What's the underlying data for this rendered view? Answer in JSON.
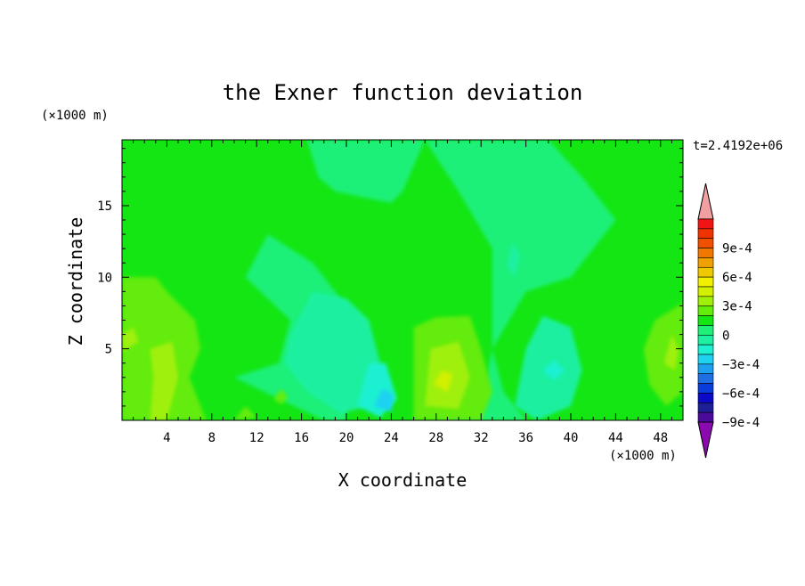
{
  "chart_data": {
    "type": "heatmap",
    "title": "the Exner function deviation",
    "xlabel": "X coordinate",
    "ylabel": "Z coordinate",
    "x_unit": "(×1000 m)",
    "z_unit": "(×1000 m)",
    "time_label": "t=2.4192e+06",
    "xlim": [
      0,
      50
    ],
    "ylim": [
      0,
      19.6
    ],
    "x_ticks": [
      4,
      8,
      12,
      16,
      20,
      24,
      28,
      32,
      36,
      40,
      44,
      48
    ],
    "y_ticks": [
      5,
      10,
      15
    ],
    "colorbar": {
      "levels": [
        -0.0011,
        -0.001,
        -0.0009,
        -0.0008,
        -0.0007,
        -0.0006,
        -0.0005,
        -0.0004,
        -0.0003,
        -0.0002,
        -0.0001,
        0,
        0.0001,
        0.0002,
        0.0003,
        0.0004,
        0.0005,
        0.0006,
        0.0007,
        0.0008,
        0.0009,
        0.001,
        0.0011
      ],
      "labels": [
        "9e-4",
        "6e-4",
        "3e-4",
        "0",
        "−3e-4",
        "−6e-4",
        "−9e-4"
      ],
      "colors": [
        "#8a0ab0",
        "#4a0a9a",
        "#1e1e96",
        "#0a0ac8",
        "#0a3cdc",
        "#1e6ee6",
        "#1ea0f0",
        "#1ed2f0",
        "#1ef0d2",
        "#1ef0a0",
        "#1ef078",
        "#14e614",
        "#64ec0a",
        "#a0f00a",
        "#d2f000",
        "#f0f000",
        "#f0c800",
        "#f0a000",
        "#f07800",
        "#f05000",
        "#f03200",
        "#f01414",
        "#f0a0a0"
      ]
    },
    "regions": [
      {
        "level": -0.0001,
        "points": [
          [
            20,
            0
          ],
          [
            20,
            8
          ],
          [
            17,
            11
          ],
          [
            13,
            13
          ],
          [
            11,
            10
          ],
          [
            15,
            7
          ],
          [
            14,
            4
          ],
          [
            10,
            3
          ],
          [
            14,
            1.5
          ],
          [
            18,
            0
          ]
        ]
      },
      {
        "level": -0.0001,
        "points": [
          [
            28,
            0
          ],
          [
            32,
            1
          ],
          [
            33,
            5
          ],
          [
            33,
            12
          ],
          [
            30,
            16
          ],
          [
            27,
            19.6
          ],
          [
            38,
            19.6
          ],
          [
            41,
            17
          ],
          [
            44,
            14
          ],
          [
            40,
            10
          ],
          [
            36,
            9
          ],
          [
            33,
            5
          ],
          [
            34,
            2
          ],
          [
            36,
            0
          ]
        ]
      },
      {
        "level": -0.0001,
        "points": [
          [
            16.5,
            19.6
          ],
          [
            17.5,
            17
          ],
          [
            19,
            16
          ],
          [
            22,
            15.5
          ],
          [
            24,
            15.2
          ],
          [
            25,
            16
          ],
          [
            27,
            19.6
          ]
        ]
      },
      {
        "level": -0.0002,
        "points": [
          [
            15,
            6
          ],
          [
            17,
            9
          ],
          [
            20,
            8.5
          ],
          [
            22,
            7
          ],
          [
            23,
            4
          ],
          [
            22,
            1
          ],
          [
            19.5,
            0.5
          ],
          [
            16.5,
            2
          ],
          [
            14.5,
            4
          ]
        ]
      },
      {
        "level": -0.0002,
        "points": [
          [
            35,
            1
          ],
          [
            36,
            5
          ],
          [
            37.5,
            7.3
          ],
          [
            40,
            6.5
          ],
          [
            41,
            3.5
          ],
          [
            40,
            1
          ],
          [
            37,
            0
          ]
        ]
      },
      {
        "level": -0.0003,
        "points": [
          [
            21,
            1
          ],
          [
            22,
            4
          ],
          [
            23.5,
            4
          ],
          [
            24.5,
            1.5
          ],
          [
            23,
            0.2
          ]
        ]
      },
      {
        "level": -0.0004,
        "points": [
          [
            22.5,
            1
          ],
          [
            23.2,
            2.2
          ],
          [
            24.2,
            1.8
          ],
          [
            24,
            0.6
          ]
        ]
      },
      {
        "level": -0.0003,
        "points": [
          [
            37.5,
            3.5
          ],
          [
            38.5,
            4.2
          ],
          [
            39.5,
            3.5
          ],
          [
            38.5,
            2.8
          ]
        ]
      },
      {
        "level": -0.0002,
        "points": [
          [
            34.3,
            10.8
          ],
          [
            34.8,
            12.5
          ],
          [
            35.5,
            11.5
          ],
          [
            35,
            10
          ]
        ]
      },
      {
        "level": 0.0001,
        "points": [
          [
            0,
            0
          ],
          [
            0,
            10
          ],
          [
            3,
            10
          ],
          [
            4,
            9
          ],
          [
            6.5,
            7
          ],
          [
            7,
            5
          ],
          [
            6,
            3
          ],
          [
            7.5,
            0
          ]
        ]
      },
      {
        "level": 0.0001,
        "points": [
          [
            26,
            0
          ],
          [
            26,
            6.5
          ],
          [
            28,
            7.2
          ],
          [
            31,
            7.3
          ],
          [
            32,
            5
          ],
          [
            33,
            2
          ],
          [
            32,
            0
          ]
        ]
      },
      {
        "level": 0.0001,
        "points": [
          [
            47.5,
            7
          ],
          [
            50,
            8.2
          ],
          [
            50,
            2
          ],
          [
            48.5,
            1
          ],
          [
            47,
            2.5
          ],
          [
            46.5,
            5
          ]
        ]
      },
      {
        "level": 0.0002,
        "points": [
          [
            2.5,
            0
          ],
          [
            2.8,
            3
          ],
          [
            2.5,
            5
          ],
          [
            4.5,
            5.5
          ],
          [
            5,
            3
          ],
          [
            4,
            0
          ]
        ]
      },
      {
        "level": 0.0002,
        "points": [
          [
            27,
            1
          ],
          [
            27.5,
            5
          ],
          [
            30,
            5.5
          ],
          [
            31,
            3
          ],
          [
            30,
            0.8
          ]
        ]
      },
      {
        "level": 0.0002,
        "points": [
          [
            0,
            6
          ],
          [
            1,
            6.5
          ],
          [
            1.5,
            5.5
          ],
          [
            0,
            4.8
          ]
        ]
      },
      {
        "level": 0.0002,
        "points": [
          [
            48.3,
            4
          ],
          [
            49,
            6
          ],
          [
            49.6,
            5
          ],
          [
            49.3,
            3.5
          ]
        ]
      },
      {
        "level": 0.0003,
        "points": [
          [
            27.8,
            2.5
          ],
          [
            28.5,
            3.5
          ],
          [
            29.5,
            3.2
          ],
          [
            29,
            2
          ]
        ]
      },
      {
        "level": 0.0001,
        "points": [
          [
            10,
            0
          ],
          [
            11,
            1
          ],
          [
            12,
            0.2
          ]
        ]
      },
      {
        "level": 0.0001,
        "points": [
          [
            13.5,
            1.5
          ],
          [
            14.2,
            2.2
          ],
          [
            14.8,
            1.6
          ],
          [
            14.2,
            1.1
          ]
        ]
      }
    ]
  }
}
